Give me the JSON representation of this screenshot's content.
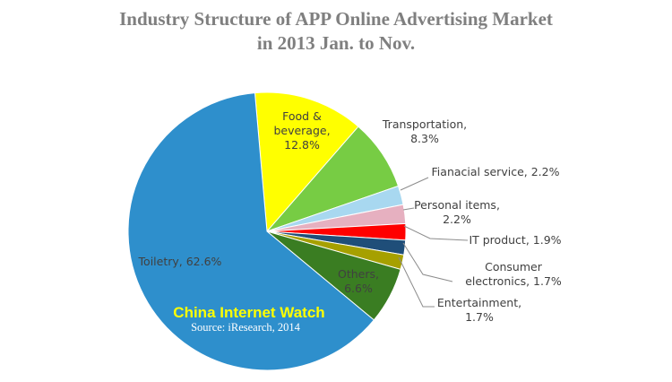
{
  "chart_data": {
    "type": "pie",
    "title_line1": "Industry Structure of APP Online Advertising Market",
    "title_line2": "in 2013 Jan. to Nov.",
    "slices": [
      {
        "label": "Food &",
        "label2": "beverage,",
        "value_text": "12.8%",
        "value": 12.8,
        "color": "#ffff00"
      },
      {
        "label": "Transportation,",
        "value_text": "8.3%",
        "value": 8.3,
        "color": "#77cc44"
      },
      {
        "label": "Fianacial service, 2.2%",
        "value": 2.2,
        "color": "#a8d8f0"
      },
      {
        "label": "Personal items,",
        "value_text": "2.2%",
        "value": 2.2,
        "color": "#e6b0c0"
      },
      {
        "label": "IT product, 1.9%",
        "value": 1.9,
        "color": "#ff0000"
      },
      {
        "label": "Consumer",
        "label2": "electronics, 1.7%",
        "value": 1.7,
        "color": "#1f4e79"
      },
      {
        "label": "Entertainment,",
        "value_text": "1.7%",
        "value": 1.7,
        "color": "#a6a000"
      },
      {
        "label": "Others,",
        "value_text": "6.6%",
        "value": 6.6,
        "color": "#3a7d22"
      },
      {
        "label": "Toiletry, 62.6%",
        "value": 62.6,
        "color": "#2e8fcc"
      }
    ]
  },
  "watermark": {
    "brand": "China Internet  Watch",
    "source": "Source: iResearch, 2014"
  }
}
